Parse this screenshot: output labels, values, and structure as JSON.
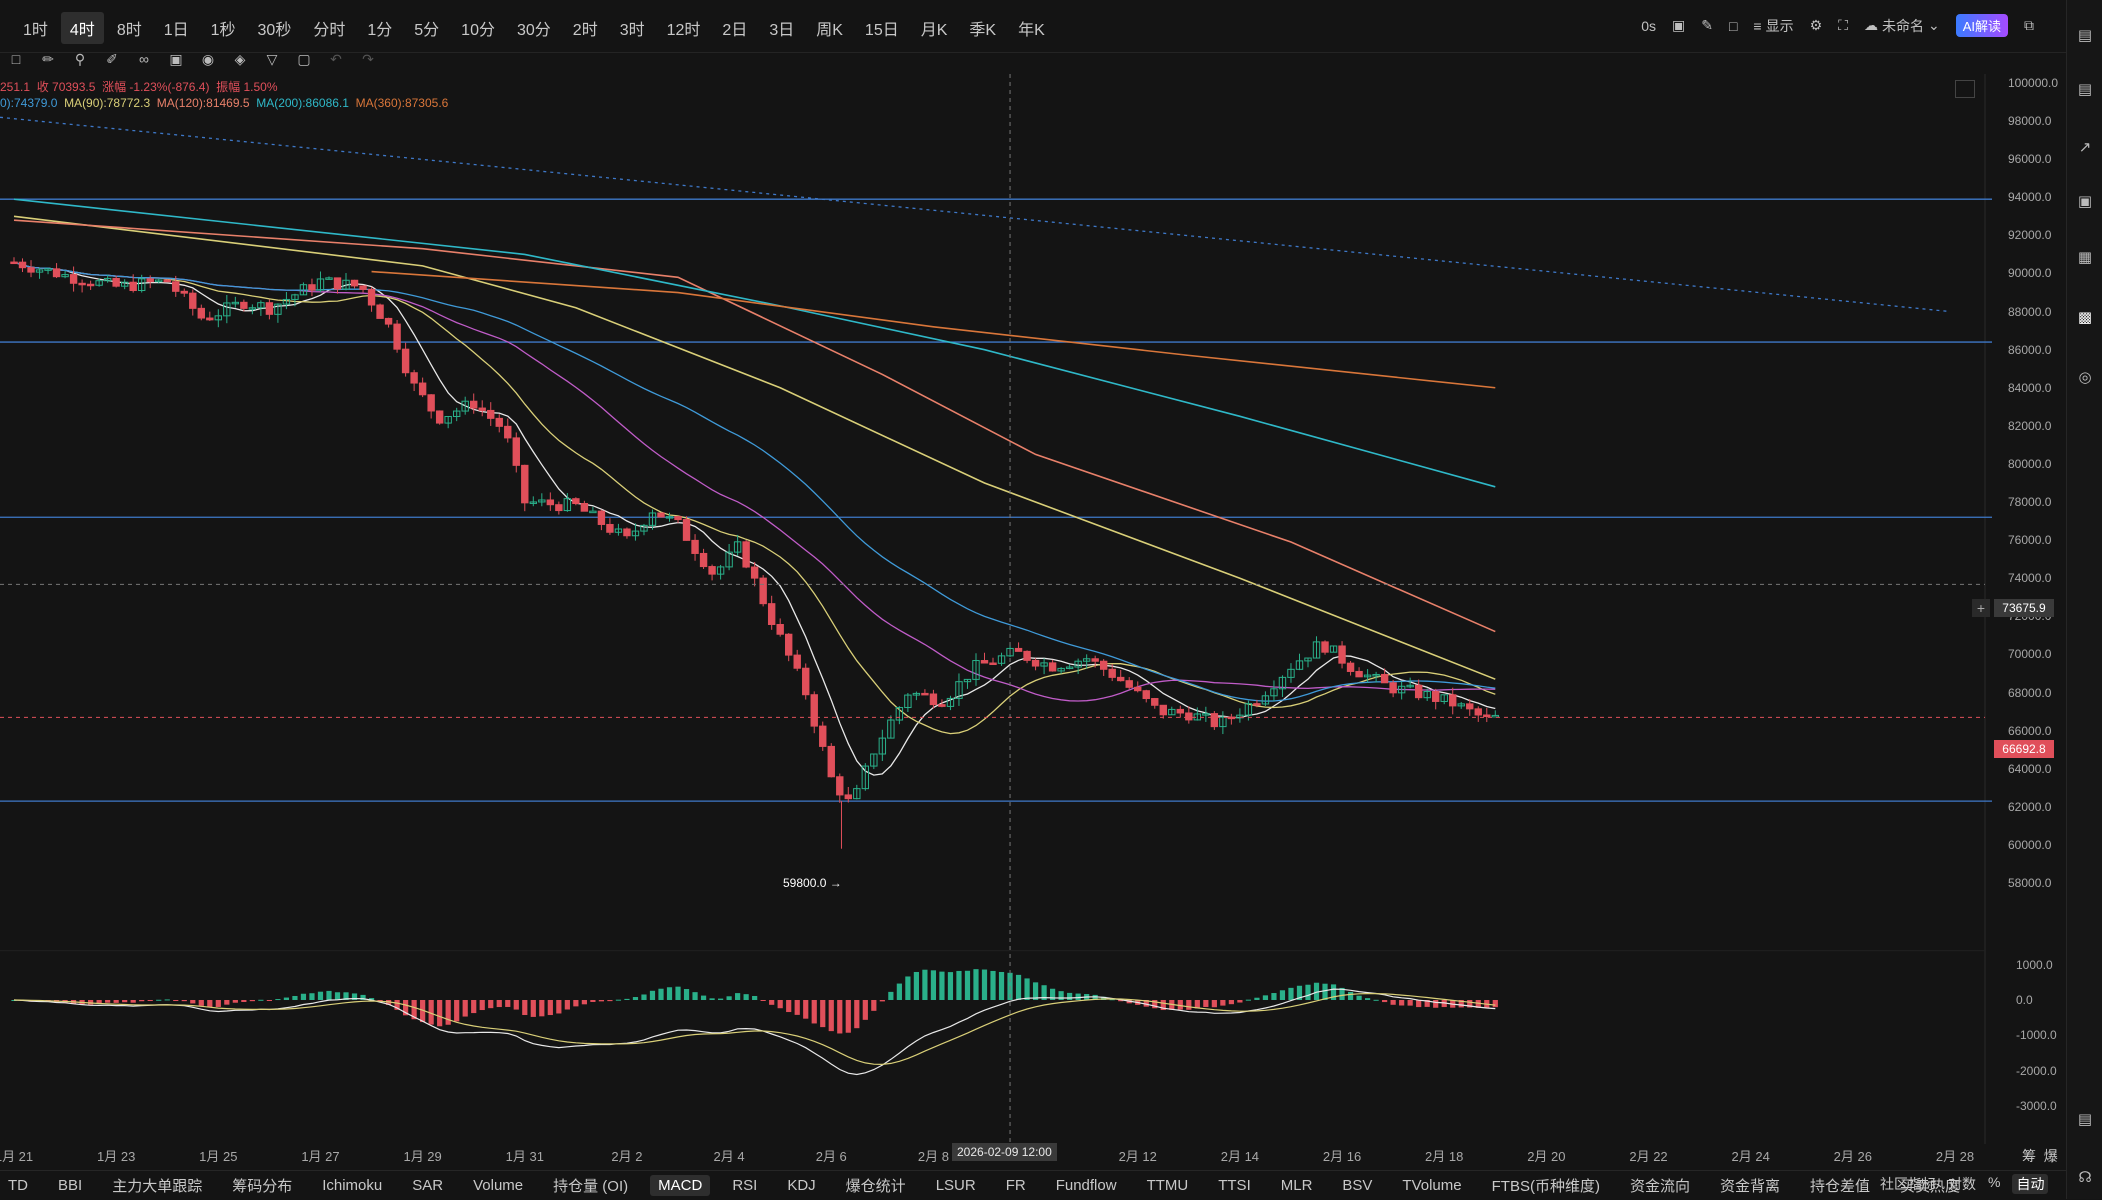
{
  "timeframes": [
    "1时",
    "4时",
    "8时",
    "1日",
    "1秒",
    "30秒",
    "分时",
    "1分",
    "5分",
    "10分",
    "30分",
    "2时",
    "3时",
    "12时",
    "2日",
    "3日",
    "周K",
    "15日",
    "月K",
    "季K",
    "年K"
  ],
  "active_timeframe_index": 1,
  "top_right": {
    "countdown": "0s",
    "display_label": "显示",
    "layout_name": "未命名",
    "ai_label": "AI解读"
  },
  "icons": {
    "camera": "camera-icon",
    "pencil": "pencil-icon",
    "chat": "chat-icon",
    "display": "list-icon",
    "settings": "gear-icon",
    "fullscreen": "fullscreen-icon",
    "cloud": "cloud-icon",
    "share": "share-icon"
  },
  "legend": {
    "line1_a": "251.1",
    "line1_close": "收 70393.5",
    "line1_change": "涨幅 -1.23%(-876.4)",
    "line1_amp": "振幅 1.50%",
    "ma_a": "0):74379.0",
    "ma90": "MA(90):78772.3",
    "ma120": "MA(120):81469.5",
    "ma200": "MA(200):86086.1",
    "ma360": "MA(360):87305.6"
  },
  "colors": {
    "up": "#2ab08a",
    "down": "#e04f5a",
    "ma_white": "#e8e8e8",
    "ma_yellow": "#d9cf78",
    "ma_magenta": "#c05cc8",
    "ma_blue": "#3f9ad8",
    "ma_salmon": "#e8806a",
    "ma_cyan": "#2fb8c8",
    "ma_orange": "#d9763a",
    "hline": "#3e78c8",
    "accent": "#3b7bff"
  },
  "chart_data": {
    "type": "candlestick",
    "price_axis": [
      "100000.0",
      "98000.0",
      "96000.0",
      "94000.0",
      "92000.0",
      "90000.0",
      "88000.0",
      "86000.0",
      "84000.0",
      "82000.0",
      "80000.0",
      "78000.0",
      "76000.0",
      "74000.0",
      "72000.0",
      "70000.0",
      "68000.0",
      "66000.0",
      "64000.0",
      "62000.0",
      "60000.0",
      "58000.0"
    ],
    "ylim": [
      57000,
      100700
    ],
    "macd_axis": [
      "1000.0",
      "0.0",
      "-1000.0",
      "-2000.0",
      "-3000.0"
    ],
    "macd_ylim": [
      -3600,
      1400
    ],
    "date_axis": [
      "1月 21",
      "1月 23",
      "1月 25",
      "1月 27",
      "1月 29",
      "1月 31",
      "2月 2",
      "2月 4",
      "2月 6",
      "2月 8",
      "2月 12",
      "2月 14",
      "2月 16",
      "2月 18",
      "2月 20",
      "2月 22",
      "2月 24",
      "2月 26",
      "2月 28"
    ],
    "crosshair_date": "2026-02-09 12:00",
    "crosshair_price": "73675.9",
    "current_price": "66692.8",
    "low_marker": "59800.0",
    "horizontal_lines": [
      93900,
      86400,
      77200,
      62300
    ],
    "trend_line": {
      "from": 98200,
      "to": 88000
    },
    "ma_series": [
      {
        "name": "MA90",
        "color": "#d9cf78",
        "points": [
          [
            "1月 21",
            93000
          ],
          [
            "1月 29",
            90400
          ],
          [
            "2月 1",
            88200
          ],
          [
            "2月 5",
            84000
          ],
          [
            "2月 9",
            79000
          ],
          [
            "2月 14",
            74000
          ],
          [
            "2月 19",
            68700
          ]
        ]
      },
      {
        "name": "MA120",
        "color": "#e8806a",
        "points": [
          [
            "1月 21",
            92800
          ],
          [
            "1月 29",
            91300
          ],
          [
            "2月 3",
            89800
          ],
          [
            "2月 7",
            84700
          ],
          [
            "2月 10",
            80500
          ],
          [
            "2月 15",
            75900
          ],
          [
            "2月 19",
            71200
          ]
        ]
      },
      {
        "name": "MA200",
        "color": "#2fb8c8",
        "points": [
          [
            "1月 21",
            93900
          ],
          [
            "1月 31",
            91000
          ],
          [
            "2月 5",
            88300
          ],
          [
            "2月 9",
            86000
          ],
          [
            "2月 14",
            82500
          ],
          [
            "2月 19",
            78800
          ]
        ]
      },
      {
        "name": "MA360",
        "color": "#d9763a",
        "points": [
          [
            "1月 28",
            90100
          ],
          [
            "2月 3",
            89000
          ],
          [
            "2月 8",
            87200
          ],
          [
            "2月 13",
            85700
          ],
          [
            "2月 19",
            84000
          ]
        ]
      }
    ]
  },
  "toolbar_right": {
    "chips": "筹",
    "burst": "爆"
  },
  "bottom_tabs": [
    "TD",
    "BBI",
    "主力大单跟踪",
    "筹码分布",
    "Ichimoku",
    "SAR",
    "Volume",
    "持仓量 (OI)",
    "MACD",
    "RSI",
    "KDJ",
    "爆仓统计",
    "LSUR",
    "FR",
    "Fundflow",
    "TTMU",
    "TTSI",
    "MLR",
    "BSV",
    "TVolume",
    "FTBS(币种维度)",
    "资金流向",
    "资金背离",
    "持仓差值",
    "买卖热度"
  ],
  "active_bottom_tab": "MACD",
  "bottom_right": {
    "community": "社区指标",
    "log": "对数",
    "pct": "%",
    "auto": "自动"
  }
}
